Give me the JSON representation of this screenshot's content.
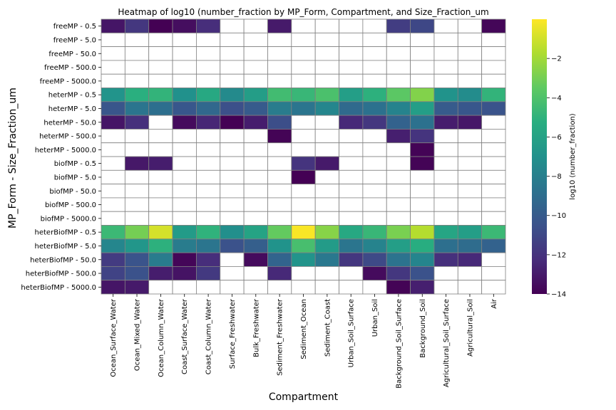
{
  "chart_data": {
    "type": "heatmap",
    "title": "Heatmap of log10 (number_fraction by MP_Form, Compartment, and Size_Fraction_um",
    "xlabel": "Compartment",
    "ylabel": "MP_Form - Size_Fraction_um",
    "colorbar_label": "log10 (number_fraction)",
    "colormap": "viridis",
    "vmin": -14,
    "vmax": 0,
    "colorbar_ticks": [
      -14,
      -12,
      -10,
      -8,
      -6,
      -4,
      -2
    ],
    "colorbar_tick_labels": [
      "−14",
      "−12",
      "−10",
      "−8",
      "−6",
      "−4",
      "−2"
    ],
    "gridline_color": "#808080",
    "missing_color": "#ffffff",
    "columns": [
      "Ocean_Surface_Water",
      "Ocean_Mixed_Water",
      "Ocean_Column_Water",
      "Coast_Surface_Water",
      "Coast_Column_Water",
      "Surface_Freshwater",
      "Bulk_Freshwater",
      "Sediment_Freshwater",
      "Sediment_Ocean",
      "Sediment_Coast",
      "Urban_Soil_Surface",
      "Urban_Soil",
      "Background_Soil_Surface",
      "Background_Soil",
      "Agricultural_Soil_Surface",
      "Agricultural_Soil",
      "Air"
    ],
    "rows": [
      "freeMP - 0.5",
      "freeMP - 5.0",
      "freeMP - 50.0",
      "freeMP - 500.0",
      "freeMP - 5000.0",
      "heterMP - 0.5",
      "heterMP - 5.0",
      "heterMP - 50.0",
      "heterMP - 500.0",
      "heterMP - 5000.0",
      "biofMP - 0.5",
      "biofMP - 5.0",
      "biofMP - 50.0",
      "biofMP - 500.0",
      "biofMP - 5000.0",
      "heterBiofMP - 0.5",
      "heterBiofMP - 5.0",
      "heterBiofMP - 50.0",
      "heterBiofMP - 500.0",
      "heterBiofMP - 5000.0"
    ],
    "values": [
      [
        -13.2,
        -11.8,
        -14.0,
        -13.5,
        -12.2,
        null,
        null,
        -13.0,
        null,
        null,
        null,
        null,
        -11.5,
        -11.0,
        null,
        null,
        -13.8
      ],
      [
        null,
        null,
        null,
        null,
        null,
        null,
        null,
        null,
        null,
        null,
        null,
        null,
        null,
        null,
        null,
        null,
        null
      ],
      [
        null,
        null,
        null,
        null,
        null,
        null,
        null,
        null,
        null,
        null,
        null,
        null,
        null,
        null,
        null,
        null,
        null
      ],
      [
        null,
        null,
        null,
        null,
        null,
        null,
        null,
        null,
        null,
        null,
        null,
        null,
        null,
        null,
        null,
        null,
        null
      ],
      [
        null,
        null,
        null,
        null,
        null,
        null,
        null,
        null,
        null,
        null,
        null,
        null,
        null,
        null,
        null,
        null,
        null
      ],
      [
        -6.8,
        -5.2,
        -4.9,
        -7.0,
        -5.6,
        -7.4,
        -6.3,
        -4.4,
        -4.7,
        -4.1,
        -6.2,
        -5.1,
        -3.6,
        -2.7,
        -6.9,
        -7.3,
        -4.9
      ],
      [
        -10.3,
        -8.6,
        -8.9,
        -10.2,
        -9.3,
        -10.6,
        -10.0,
        -8.2,
        -8.6,
        -7.6,
        -9.2,
        -8.8,
        -7.8,
        -6.2,
        -10.0,
        -10.2,
        -10.4
      ],
      [
        -13.2,
        -12.1,
        null,
        -13.6,
        -12.5,
        -14.0,
        -12.9,
        -10.7,
        null,
        null,
        -12.4,
        -11.8,
        -9.6,
        -8.8,
        -12.9,
        -13.1,
        null
      ],
      [
        null,
        null,
        null,
        null,
        null,
        null,
        null,
        -13.9,
        null,
        null,
        null,
        null,
        -12.8,
        -11.9,
        null,
        null,
        null
      ],
      [
        null,
        null,
        null,
        null,
        null,
        null,
        null,
        null,
        null,
        null,
        null,
        null,
        null,
        -13.9,
        null,
        null,
        null
      ],
      [
        null,
        -13.1,
        -12.9,
        null,
        null,
        null,
        null,
        null,
        -11.9,
        -13.0,
        null,
        null,
        null,
        -13.9,
        null,
        null,
        null
      ],
      [
        null,
        null,
        null,
        null,
        null,
        null,
        null,
        null,
        -14.0,
        null,
        null,
        null,
        null,
        null,
        null,
        null,
        null
      ],
      [
        null,
        null,
        null,
        null,
        null,
        null,
        null,
        null,
        null,
        null,
        null,
        null,
        null,
        null,
        null,
        null,
        null
      ],
      [
        null,
        null,
        null,
        null,
        null,
        null,
        null,
        null,
        null,
        null,
        null,
        null,
        null,
        null,
        null,
        null,
        null
      ],
      [
        null,
        null,
        null,
        null,
        null,
        null,
        null,
        null,
        null,
        null,
        null,
        null,
        null,
        null,
        null,
        null,
        null
      ],
      [
        -4.6,
        -3.0,
        -0.9,
        -6.4,
        -5.0,
        -7.1,
        -5.9,
        -3.4,
        -0.1,
        -2.6,
        -5.6,
        -4.7,
        -2.9,
        -1.6,
        -5.8,
        -6.2,
        -4.6
      ],
      [
        -7.6,
        -6.7,
        -5.1,
        -8.2,
        -8.6,
        -10.5,
        -9.8,
        -6.9,
        -4.2,
        -6.4,
        -8.6,
        -7.8,
        -6.2,
        -5.3,
        -8.9,
        -9.1,
        -9.6
      ],
      [
        -11.6,
        -10.4,
        -8.2,
        -13.8,
        -12.2,
        null,
        -13.6,
        -9.5,
        -6.8,
        -8.4,
        -11.8,
        -10.9,
        -8.7,
        -7.7,
        -12.1,
        -12.4,
        null
      ],
      [
        -11.2,
        -10.5,
        -12.9,
        -13.3,
        -11.7,
        null,
        null,
        -12.4,
        null,
        null,
        null,
        -13.6,
        -11.8,
        -10.5,
        null,
        null,
        null
      ],
      [
        -13.2,
        -13.0,
        null,
        null,
        null,
        null,
        null,
        null,
        null,
        null,
        null,
        null,
        -13.9,
        -12.8,
        null,
        null,
        null
      ]
    ]
  }
}
